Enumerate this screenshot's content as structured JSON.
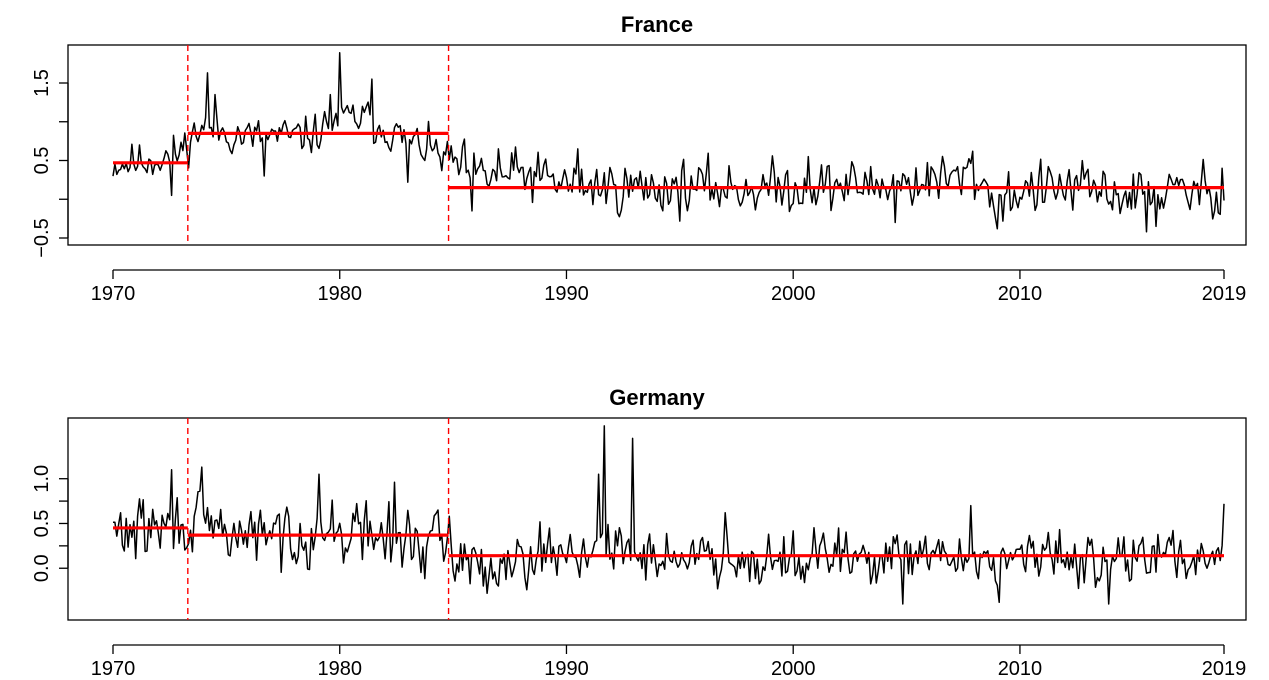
{
  "colors": {
    "series": "#000000",
    "segment_mean": "#ff0000",
    "break": "#ff0000"
  },
  "chart_data": [
    {
      "type": "line",
      "title": "France",
      "xlabel": "",
      "ylabel": "",
      "xlim": [
        1970,
        2019
      ],
      "ylim": [
        -0.5,
        1.9
      ],
      "x_ticks": [
        1970,
        1980,
        1990,
        2000,
        2010,
        2019
      ],
      "y_ticks": [
        -0.5,
        0.5,
        1.5
      ],
      "y_tick_labels": [
        "−0.5",
        "0.5",
        "1.5"
      ],
      "grid": false,
      "breakpoints": [
        1973.3,
        1984.8
      ],
      "segments": [
        {
          "x_start": 1970.0,
          "x_end": 1973.3,
          "mean": 0.47
        },
        {
          "x_start": 1973.3,
          "x_end": 1984.8,
          "mean": 0.85
        },
        {
          "x_start": 1984.8,
          "x_end": 2019.0,
          "mean": 0.15
        }
      ],
      "anchors": [
        [
          1970.0,
          0.45
        ],
        [
          1971.5,
          0.5
        ],
        [
          1972.5,
          0.55
        ],
        [
          1973.0,
          0.62
        ],
        [
          1973.3,
          0.75
        ],
        [
          1974.0,
          0.95
        ],
        [
          1975.0,
          0.85
        ],
        [
          1976.0,
          0.8
        ],
        [
          1977.0,
          0.82
        ],
        [
          1978.0,
          0.8
        ],
        [
          1979.0,
          0.85
        ],
        [
          1980.0,
          1.05
        ],
        [
          1981.0,
          1.05
        ],
        [
          1982.0,
          0.9
        ],
        [
          1983.0,
          0.75
        ],
        [
          1984.0,
          0.65
        ],
        [
          1984.8,
          0.5
        ],
        [
          1986.0,
          0.3
        ],
        [
          1988.0,
          0.32
        ],
        [
          1990.0,
          0.2
        ],
        [
          1992.0,
          0.15
        ],
        [
          1995.0,
          0.15
        ],
        [
          2000.0,
          0.15
        ],
        [
          2005.0,
          0.2
        ],
        [
          2008.0,
          0.3
        ],
        [
          2009.0,
          0.0
        ],
        [
          2010.0,
          0.1
        ],
        [
          2012.0,
          0.15
        ],
        [
          2015.0,
          0.05
        ],
        [
          2019.0,
          0.12
        ]
      ],
      "spikes": [
        [
          1974.2,
          1.63
        ],
        [
          1974.5,
          1.35
        ],
        [
          1980.0,
          1.9
        ],
        [
          1981.4,
          1.55
        ],
        [
          1979.6,
          1.35
        ],
        [
          1983.0,
          0.22
        ],
        [
          1976.7,
          0.3
        ],
        [
          1972.6,
          0.05
        ],
        [
          1985.8,
          -0.15
        ],
        [
          1987.0,
          0.65
        ],
        [
          1990.5,
          0.65
        ],
        [
          2007.9,
          0.62
        ],
        [
          2009.0,
          -0.38
        ],
        [
          2015.6,
          -0.42
        ],
        [
          2016.0,
          -0.35
        ],
        [
          2018.6,
          -0.15
        ],
        [
          2018.9,
          0.4
        ],
        [
          2000.7,
          0.55
        ],
        [
          2004.5,
          -0.3
        ]
      ],
      "noise_before": 0.12,
      "noise_after": 0.16,
      "seed": 11
    },
    {
      "type": "line",
      "title": "Germany",
      "xlabel": "",
      "ylabel": "",
      "xlim": [
        1970,
        2019
      ],
      "ylim": [
        -0.5,
        1.6
      ],
      "x_ticks": [
        1970,
        1980,
        1990,
        2000,
        2010,
        2019
      ],
      "y_ticks": [
        0.0,
        0.5,
        1.0
      ],
      "y_tick_labels": [
        "0.0",
        "0.5",
        "1.0"
      ],
      "grid": false,
      "breakpoints": [
        1973.3,
        1984.8
      ],
      "segments": [
        {
          "x_start": 1970.0,
          "x_end": 1973.3,
          "mean": 0.45
        },
        {
          "x_start": 1973.3,
          "x_end": 1984.8,
          "mean": 0.37
        },
        {
          "x_start": 1984.8,
          "x_end": 2019.0,
          "mean": 0.14
        }
      ],
      "anchors": [
        [
          1970.0,
          0.4
        ],
        [
          1972.0,
          0.45
        ],
        [
          1973.3,
          0.5
        ],
        [
          1975.0,
          0.4
        ],
        [
          1977.0,
          0.35
        ],
        [
          1979.0,
          0.4
        ],
        [
          1981.0,
          0.4
        ],
        [
          1983.0,
          0.3
        ],
        [
          1984.8,
          0.25
        ],
        [
          1986.0,
          0.0
        ],
        [
          1988.0,
          0.15
        ],
        [
          1990.0,
          0.2
        ],
        [
          1992.0,
          0.2
        ],
        [
          1995.0,
          0.12
        ],
        [
          2000.0,
          0.12
        ],
        [
          2005.0,
          0.1
        ],
        [
          2010.0,
          0.12
        ],
        [
          2015.0,
          0.12
        ],
        [
          2019.0,
          0.15
        ]
      ],
      "spikes": [
        [
          1972.6,
          1.1
        ],
        [
          1973.9,
          1.13
        ],
        [
          1979.1,
          1.05
        ],
        [
          1982.4,
          0.96
        ],
        [
          1984.8,
          0.58
        ],
        [
          1991.7,
          1.62
        ],
        [
          1992.9,
          1.45
        ],
        [
          1991.4,
          1.05
        ],
        [
          1986.5,
          -0.28
        ],
        [
          2004.8,
          -0.4
        ],
        [
          2009.1,
          -0.38
        ],
        [
          2013.9,
          -0.4
        ],
        [
          2007.8,
          0.7
        ],
        [
          2019.0,
          0.72
        ],
        [
          1997.0,
          0.62
        ],
        [
          2002.0,
          0.45
        ]
      ],
      "noise_before": 0.17,
      "noise_after": 0.14,
      "seed": 29
    }
  ]
}
